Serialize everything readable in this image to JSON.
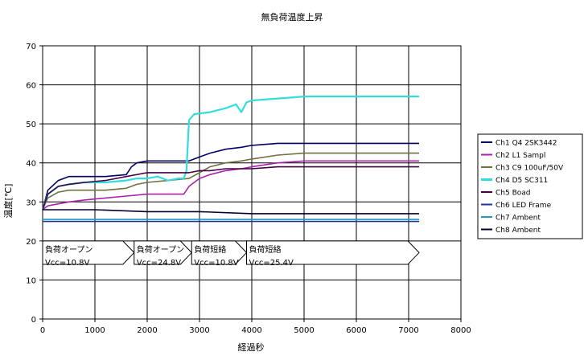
{
  "chart_data": {
    "type": "line",
    "title": "無負荷温度上昇",
    "xlabel": "経過秒",
    "ylabel": "温度[℃]",
    "xlim": [
      0,
      8000
    ],
    "ylim": [
      0,
      70
    ],
    "xticks": [
      0,
      1000,
      2000,
      3000,
      4000,
      5000,
      6000,
      7000,
      8000
    ],
    "yticks": [
      0,
      10,
      20,
      30,
      40,
      50,
      60,
      70
    ],
    "grid": true,
    "legend_position": "right",
    "series": [
      {
        "name": "Ch1 Q4 2SK3442",
        "color": "#000066",
        "x": [
          0,
          100,
          300,
          500,
          800,
          1200,
          1600,
          1700,
          1800,
          2000,
          2200,
          2400,
          2600,
          2800,
          3000,
          3200,
          3500,
          3800,
          4000,
          4500,
          5000,
          6000,
          7000,
          7200
        ],
        "y": [
          28,
          33,
          35.5,
          36.5,
          36.5,
          36.5,
          37,
          39,
          40,
          40.5,
          40.5,
          40.5,
          40.5,
          40.5,
          41.5,
          42.5,
          43.5,
          44,
          44.5,
          45,
          45,
          45,
          45,
          45
        ]
      },
      {
        "name": "Ch2 L1 Sampl",
        "color": "#aa22aa",
        "x": [
          0,
          100,
          300,
          500,
          800,
          1200,
          1600,
          2000,
          2400,
          2700,
          2800,
          3000,
          3200,
          3500,
          3800,
          4000,
          4500,
          5000,
          6000,
          7000,
          7200
        ],
        "y": [
          28,
          29,
          29.5,
          30,
          30.5,
          31,
          31.5,
          32,
          32,
          32,
          34,
          36,
          37,
          38,
          38.5,
          39,
          40,
          40.5,
          40.5,
          40.5,
          40.5
        ]
      },
      {
        "name": "Ch3 C9 100uF/50V",
        "color": "#707040",
        "x": [
          0,
          100,
          300,
          500,
          800,
          1200,
          1600,
          1700,
          1800,
          2000,
          2400,
          2800,
          3000,
          3200,
          3500,
          3800,
          4000,
          4500,
          5000,
          6000,
          7000,
          7200
        ],
        "y": [
          28,
          31,
          32.5,
          33,
          33,
          33,
          33.5,
          34,
          34.5,
          35,
          35.5,
          36,
          37.5,
          39,
          40,
          40.5,
          41,
          42,
          42.5,
          42.5,
          42.5,
          42.5
        ]
      },
      {
        "name": "Ch4 D5 SC311",
        "color": "#33dddd",
        "x": [
          0,
          100,
          300,
          500,
          800,
          1200,
          1600,
          1800,
          2000,
          2200,
          2400,
          2600,
          2700,
          2750,
          2800,
          2900,
          3200,
          3500,
          3700,
          3800,
          3900,
          4000,
          4500,
          5000,
          6000,
          7000,
          7200
        ],
        "y": [
          28,
          32,
          34,
          34.5,
          35,
          35,
          35.5,
          36,
          36,
          36.5,
          35.5,
          36,
          36,
          38,
          51,
          52.5,
          53,
          54,
          55,
          53,
          55.5,
          56,
          56.5,
          57,
          57,
          57,
          57
        ]
      },
      {
        "name": "Ch5 Boad",
        "color": "#440044",
        "x": [
          0,
          100,
          300,
          500,
          800,
          1200,
          1600,
          2000,
          2400,
          2800,
          3000,
          3200,
          3500,
          3800,
          4000,
          4500,
          5000,
          6000,
          7000,
          7200
        ],
        "y": [
          28,
          32,
          34,
          34.5,
          35,
          35.5,
          36.5,
          37.5,
          37.5,
          37.5,
          38,
          38,
          38.5,
          38.5,
          38.5,
          39,
          39,
          39,
          39,
          39
        ]
      },
      {
        "name": "Ch6 LED Frame",
        "color": "#223399",
        "x": [
          0,
          1000,
          2000,
          3000,
          4000,
          5000,
          6000,
          7000,
          7200
        ],
        "y": [
          25,
          25,
          25,
          25,
          25,
          25,
          25,
          25,
          25
        ]
      },
      {
        "name": "Ch7 Ambent",
        "color": "#2299bb",
        "x": [
          0,
          1000,
          2000,
          3000,
          4000,
          5000,
          6000,
          7000,
          7200
        ],
        "y": [
          25.5,
          25.5,
          25.5,
          25.5,
          25.5,
          25.5,
          25.5,
          25.5,
          25.5
        ]
      },
      {
        "name": "Ch8 Ambent",
        "color": "#000033",
        "x": [
          0,
          100,
          1000,
          2000,
          3000,
          4000,
          5000,
          6000,
          7000,
          7200
        ],
        "y": [
          28,
          28,
          28,
          27.5,
          27.5,
          27,
          27,
          27,
          27,
          27
        ]
      }
    ],
    "annotations": [
      {
        "line1": "負荷オープン",
        "line2": "Vcc=10.8V",
        "x_start": 0,
        "x_end": 1750,
        "y_top": 20,
        "y_bottom": 14
      },
      {
        "line1": "負荷オープン",
        "line2": "Vcc=24.8V",
        "x_start": 1750,
        "x_end": 2850,
        "y_top": 20,
        "y_bottom": 14
      },
      {
        "line1": "負荷短絡",
        "line2": "Vcc=10.8V",
        "x_start": 2850,
        "x_end": 3900,
        "y_top": 20,
        "y_bottom": 14
      },
      {
        "line1": "負荷短絡",
        "line2": "Vcc=25.4V",
        "x_start": 3900,
        "x_end": 7200,
        "y_top": 20,
        "y_bottom": 14
      }
    ]
  }
}
